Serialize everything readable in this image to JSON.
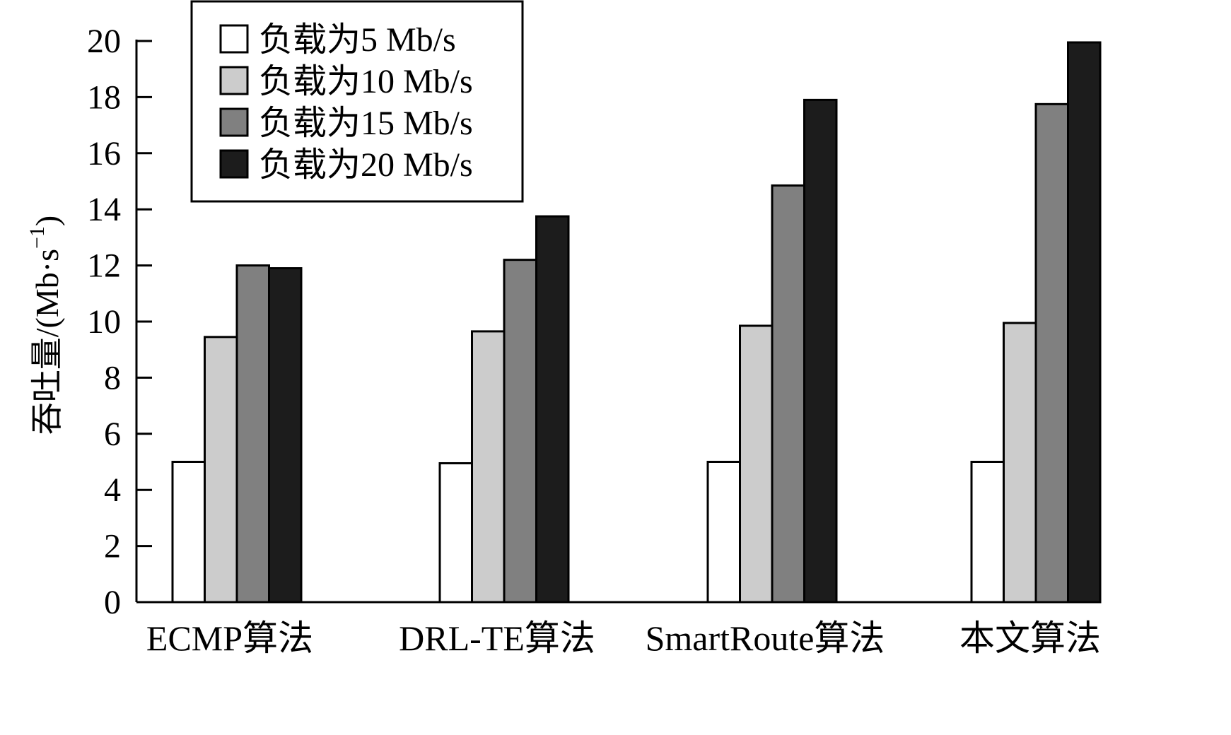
{
  "chart_data": {
    "type": "bar",
    "categories": [
      "ECMP算法",
      "DRL-TE算法",
      "SmartRoute算法",
      "本文算法"
    ],
    "series": [
      {
        "name": "负载为5 Mb/s",
        "color": "#ffffff",
        "values": [
          5.0,
          4.95,
          5.0,
          5.0
        ]
      },
      {
        "name": "负载为10 Mb/s",
        "color": "#cccccc",
        "values": [
          9.45,
          9.65,
          9.85,
          9.95
        ]
      },
      {
        "name": "负载为15 Mb/s",
        "color": "#808080",
        "values": [
          12.0,
          12.2,
          14.85,
          17.75
        ]
      },
      {
        "name": "负载为20 Mb/s",
        "color": "#1c1c1c",
        "values": [
          11.9,
          13.75,
          17.9,
          19.95
        ]
      }
    ],
    "ylabel": "吞吐量/(Mb·s",
    "ylabel_superscript": "−1",
    "ylabel_suffix": ")",
    "xlabel": "",
    "ylim": [
      0,
      20
    ],
    "yticks": [
      0,
      2,
      4,
      6,
      8,
      10,
      12,
      14,
      16,
      18,
      20
    ],
    "grid": false,
    "legend_position": "top-left"
  }
}
